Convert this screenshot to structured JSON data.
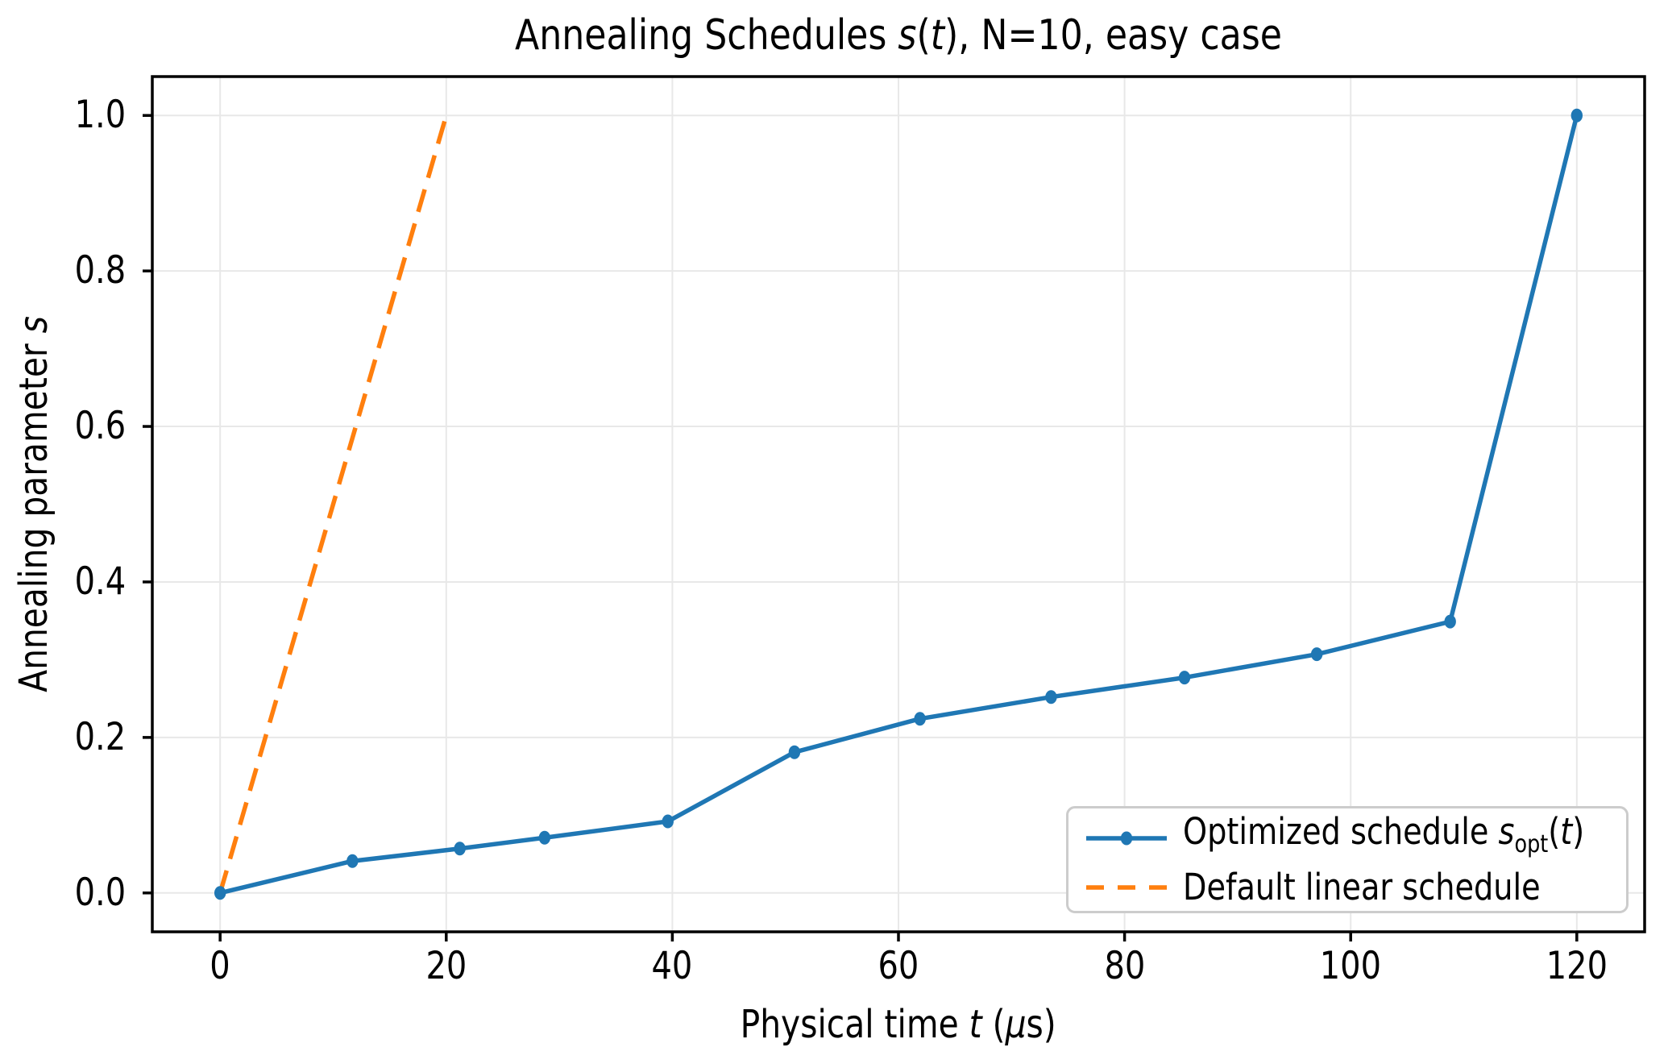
{
  "figure": {
    "title": {
      "full": "Annealing Schedules s(t), N=10, easy case",
      "prefix": "Annealing Schedules ",
      "math_var": "s",
      "math_open": "(",
      "math_arg": "t",
      "math_close": ")",
      "suffix": ", N=10, easy case"
    },
    "xlabel": {
      "full": "Physical time t (μs)",
      "prefix": "Physical time ",
      "math_var": "t",
      "open": " (",
      "mu": "μ",
      "unit": "s",
      "close": ")"
    },
    "ylabel": {
      "full": "Annealing parameter s",
      "prefix": "Annealing parameter ",
      "math_var": "s"
    }
  },
  "legend": {
    "position": "lower right",
    "border_color": "#cccccc",
    "items": [
      {
        "full": "Optimized schedule s_opt(t)",
        "prefix": "Optimized schedule ",
        "var": "s",
        "sub": "opt",
        "open": "(",
        "arg": "t",
        "close": ")",
        "color": "#1f77b4",
        "line_style": "solid",
        "marker": "circle"
      },
      {
        "label": "Default linear schedule",
        "color": "#ff7f0e",
        "line_style": "dashed",
        "marker": "none"
      }
    ]
  },
  "colors": {
    "optimized_line": "#1f77b4",
    "default_line": "#ff7f0e",
    "grid": "#e8e8e8",
    "spine": "#000000",
    "text": "#000000",
    "background": "#ffffff"
  },
  "chart_data": {
    "type": "line",
    "title": "Annealing Schedules s(t), N=10, easy case",
    "xlabel": "Physical time t (μs)",
    "ylabel": "Annealing parameter s",
    "xlim": [
      -6,
      126
    ],
    "ylim": [
      -0.05,
      1.05
    ],
    "grid": true,
    "legend_position": "lower right",
    "xticks": {
      "values": [
        0,
        20,
        40,
        60,
        80,
        100,
        120
      ],
      "labels": [
        "0",
        "20",
        "40",
        "60",
        "80",
        "100",
        "120"
      ]
    },
    "yticks": {
      "values": [
        0.0,
        0.2,
        0.4,
        0.6,
        0.8,
        1.0
      ],
      "labels": [
        "0.0",
        "0.2",
        "0.4",
        "0.6",
        "0.8",
        "1.0"
      ]
    },
    "series": [
      {
        "name": "Optimized schedule s_opt(t)",
        "color": "#1f77b4",
        "style": "solid",
        "marker": "circle",
        "x": [
          0.0,
          11.7,
          21.2,
          28.7,
          39.6,
          50.8,
          61.9,
          73.5,
          85.3,
          97.0,
          108.8,
          120.0
        ],
        "y": [
          0.0,
          0.041,
          0.057,
          0.071,
          0.092,
          0.181,
          0.224,
          0.252,
          0.277,
          0.307,
          0.349,
          1.0
        ]
      },
      {
        "name": "Default linear schedule",
        "color": "#ff7f0e",
        "style": "dashed",
        "marker": "none",
        "x": [
          0,
          20
        ],
        "y": [
          0,
          1
        ]
      }
    ]
  }
}
